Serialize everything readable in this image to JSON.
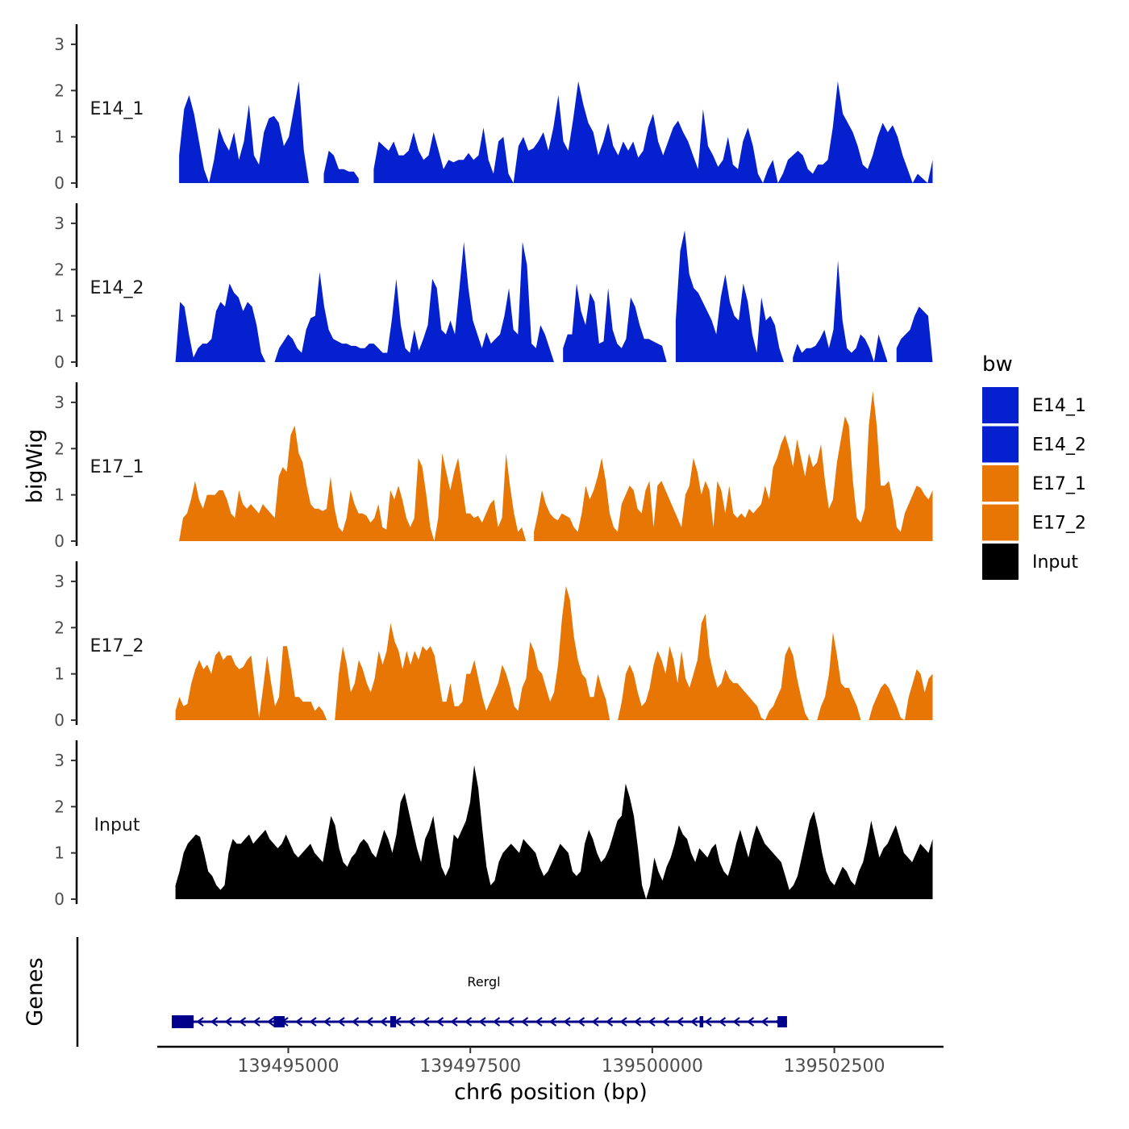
{
  "chart_data": {
    "type": "area",
    "title": "",
    "xlabel": "chr6 position (bp)",
    "ylabel": "bigWig",
    "genes_label": "Genes",
    "legend_title": "bw",
    "legend_position": "right",
    "xlim": [
      139493200,
      139504000
    ],
    "x_ticks": [
      139495000,
      139497500,
      139500000,
      139502500
    ],
    "x_tick_labels": [
      "139495000",
      "139497500",
      "139500000",
      "139502500"
    ],
    "ylim": [
      0,
      3.4
    ],
    "y_ticks": [
      0,
      1,
      2,
      3
    ],
    "y_tick_labels": [
      "0",
      "1",
      "2",
      "3"
    ],
    "series": [
      {
        "name": "E14_1",
        "color": "#0520cf",
        "x_start": 139493500,
        "x_end": 139503850,
        "values": [
          0.6,
          1.6,
          1.9,
          1.5,
          0.9,
          0.3,
          0,
          0.5,
          1.2,
          0.9,
          0.7,
          1.1,
          0.5,
          0.9,
          1.7,
          0.6,
          0.4,
          1.1,
          1.4,
          1.45,
          1.3,
          0.8,
          1.0,
          1.6,
          2.2,
          0.7,
          0,
          null,
          null,
          0.2,
          0.7,
          0.6,
          0.3,
          0.3,
          0.25,
          0.25,
          0.1,
          null,
          null,
          0.3,
          0.9,
          0.8,
          0.7,
          0.9,
          0.6,
          0.6,
          0.7,
          1.1,
          0.7,
          0.5,
          0.6,
          1.1,
          0.7,
          0.3,
          0.5,
          0.45,
          0.5,
          0.5,
          0.65,
          0.5,
          0.6,
          1.2,
          0.5,
          0.2,
          0.9,
          1.0,
          0.2,
          0,
          0.8,
          1.0,
          0.7,
          0.75,
          0.9,
          1.1,
          0.7,
          1.2,
          1.9,
          0.9,
          0.7,
          1.4,
          2.2,
          1.7,
          1.3,
          1.1,
          0.6,
          0.9,
          1.3,
          0.8,
          0.6,
          0.9,
          0.7,
          0.9,
          0.55,
          0.7,
          1.2,
          1.5,
          0.9,
          0.6,
          0.9,
          1.2,
          1.35,
          1.1,
          0.9,
          0.6,
          0.3,
          1.6,
          0.8,
          0.6,
          0.35,
          0.5,
          1.0,
          0.4,
          0.3,
          0.9,
          1.2,
          0.8,
          0.2,
          0,
          0.3,
          0.5,
          0,
          0.2,
          0.5,
          0.6,
          0.7,
          0.6,
          0.3,
          0.2,
          0.4,
          0.4,
          0.5,
          1.2,
          2.2,
          1.5,
          1.3,
          1.1,
          0.8,
          0.4,
          0.3,
          0.6,
          1.0,
          1.3,
          1.1,
          1.25,
          1.0,
          0.6,
          0.3,
          0,
          0.2,
          0.1,
          0,
          0.5
        ]
      },
      {
        "name": "E14_2",
        "color": "#0520cf",
        "x_start": 139493450,
        "x_end": 139503850,
        "values": [
          0,
          1.3,
          1.2,
          0.6,
          0.1,
          0.3,
          0.4,
          0.4,
          0.5,
          1.1,
          1.3,
          1.2,
          1.7,
          1.5,
          1.4,
          1.1,
          1.3,
          1.2,
          0.8,
          0.2,
          0,
          null,
          0,
          0.3,
          0.45,
          0.6,
          0.5,
          0.3,
          0.2,
          0.7,
          0.95,
          1.0,
          1.95,
          1.2,
          0.7,
          0.5,
          0.45,
          0.4,
          0.4,
          0.35,
          0.35,
          0.3,
          0.3,
          0.4,
          0.4,
          0.3,
          0.2,
          0.2,
          0.9,
          1.8,
          0.8,
          0.3,
          0.2,
          0.7,
          0.25,
          0.5,
          0.8,
          1.8,
          1.6,
          0.7,
          0.6,
          0.9,
          0.6,
          1.6,
          2.6,
          1.6,
          0.9,
          0.6,
          0.3,
          0.65,
          0.4,
          0.5,
          0.6,
          1.0,
          1.6,
          0.7,
          0.6,
          2.6,
          2.1,
          0.4,
          0.3,
          0.8,
          0.6,
          0.3,
          0,
          null,
          0.3,
          0.6,
          0.6,
          1.7,
          1.1,
          0.8,
          1.5,
          1.3,
          0.4,
          0.45,
          1.6,
          0.7,
          0.4,
          0.3,
          0.5,
          1.4,
          1.2,
          0.8,
          0.5,
          0.5,
          0.45,
          0.4,
          0.35,
          0,
          null,
          0.9,
          2.4,
          2.85,
          1.9,
          1.6,
          1.5,
          1.3,
          1.1,
          0.9,
          0.6,
          1.4,
          1.9,
          1.3,
          1.0,
          0.9,
          1.7,
          1.3,
          0.6,
          0.2,
          1.4,
          0.9,
          1.0,
          0.8,
          0.3,
          0,
          null,
          0.1,
          0.4,
          0.2,
          0.3,
          0.3,
          0.35,
          0.5,
          0.7,
          0.3,
          0.7,
          2.2,
          0.9,
          0.3,
          0.2,
          0.3,
          0.6,
          0.5,
          0.3,
          0,
          0.6,
          0.3,
          0,
          null,
          0.3,
          0.5,
          0.6,
          0.7,
          1.0,
          1.2,
          1.1,
          1.0,
          0
        ]
      },
      {
        "name": "E17_1",
        "color": "#e77604",
        "x_start": 139493500,
        "x_end": 139503850,
        "values": [
          0,
          0.5,
          0.6,
          0.9,
          1.3,
          0.9,
          0.7,
          1.0,
          1.0,
          1.0,
          1.1,
          1.1,
          0.9,
          0.6,
          0.5,
          1.1,
          0.8,
          0.7,
          0.8,
          0.7,
          0.6,
          0.8,
          0.7,
          0.6,
          0.5,
          1.4,
          1.6,
          1.5,
          2.3,
          2.5,
          1.9,
          1.7,
          1.2,
          0.8,
          0.7,
          0.7,
          0.65,
          0.7,
          1.4,
          0.7,
          0.3,
          0.2,
          0.5,
          1.1,
          0.8,
          0.6,
          0.6,
          0.55,
          0.4,
          0.5,
          0.8,
          0.3,
          0.25,
          1.1,
          0.9,
          1.2,
          0.9,
          0.5,
          0.3,
          0.5,
          1.8,
          1.6,
          1.0,
          0.3,
          0,
          0.5,
          1.9,
          1.5,
          1.1,
          1.5,
          1.8,
          1.2,
          0.6,
          0.6,
          0.5,
          0.55,
          0.4,
          0.6,
          0.8,
          0.9,
          0.3,
          0.5,
          1.9,
          1.2,
          0.6,
          0.2,
          0.3,
          0,
          null,
          0.2,
          0.6,
          1.1,
          0.8,
          0.6,
          0.5,
          0.45,
          0.6,
          0.55,
          0.5,
          0.3,
          0.2,
          0.6,
          1.2,
          0.9,
          1.1,
          1.4,
          1.8,
          1.3,
          0.6,
          0.3,
          0.2,
          0.8,
          1.0,
          1.2,
          1.1,
          0.7,
          0.6,
          1.1,
          1.3,
          0.3,
          1.2,
          1.3,
          1.1,
          0.9,
          0.7,
          0.5,
          0.3,
          1.0,
          1.2,
          1.8,
          1.5,
          1.0,
          1.3,
          1.1,
          0.3,
          1.3,
          1.1,
          0.6,
          1.2,
          0.6,
          0.5,
          0.6,
          0.5,
          0.7,
          0.6,
          0.7,
          0.8,
          1.2,
          0.9,
          1.6,
          1.8,
          2.1,
          2.3,
          2.0,
          1.6,
          2.2,
          1.8,
          1.4,
          1.9,
          1.6,
          1.7,
          2.1,
          1.3,
          0.7,
          0.9,
          1.7,
          2.2,
          2.7,
          2.5,
          1.3,
          0.5,
          0.4,
          0.7,
          2.5,
          3.25,
          2.5,
          1.2,
          1.2,
          1.3,
          0.9,
          0.3,
          0.2,
          0.6,
          0.8,
          1.0,
          1.2,
          1.15,
          1.0,
          0.9,
          1.1
        ]
      },
      {
        "name": "E17_2",
        "color": "#e77604",
        "x_start": 139493450,
        "x_end": 139503850,
        "values": [
          0.2,
          0.5,
          0.3,
          0.35,
          0.8,
          1.1,
          1.3,
          1.1,
          1.2,
          1.0,
          1.4,
          1.5,
          1.3,
          1.4,
          1.4,
          1.2,
          1.1,
          1.15,
          1.3,
          1.4,
          0.7,
          0.05,
          0.7,
          1.4,
          0.8,
          0.3,
          0.5,
          1.6,
          1.6,
          1.1,
          0.5,
          0.5,
          0.4,
          0.4,
          0.4,
          0.2,
          0.3,
          0.2,
          0,
          null,
          0,
          1.0,
          1.6,
          1.2,
          0.6,
          0.8,
          1.3,
          1.1,
          0.8,
          0.6,
          0.9,
          1.5,
          1.2,
          1.5,
          2.1,
          1.7,
          1.5,
          1.1,
          1.5,
          1.2,
          1.5,
          1.3,
          1.6,
          1.5,
          1.6,
          1.4,
          0.9,
          0.4,
          0.4,
          0.8,
          0.3,
          0.3,
          0.4,
          1.0,
          1.0,
          1.3,
          0.9,
          0.5,
          0.2,
          0.4,
          0.6,
          0.8,
          1.2,
          1.0,
          0.7,
          0.3,
          0.2,
          0.7,
          0.9,
          1.7,
          1.5,
          1.1,
          1.0,
          0.7,
          0.4,
          0.6,
          1.2,
          2.2,
          2.9,
          2.6,
          1.8,
          1.3,
          1.0,
          0.9,
          0.5,
          0.5,
          1.0,
          0.7,
          0.45,
          0,
          null,
          0,
          0.4,
          1.0,
          1.2,
          1.0,
          0.6,
          0.3,
          0.4,
          0.7,
          1.2,
          1.5,
          1.3,
          1.0,
          1.6,
          1.3,
          0.8,
          1.5,
          0.9,
          0.7,
          1.0,
          1.3,
          2.1,
          2.3,
          1.4,
          1.0,
          0.7,
          0.8,
          1.1,
          0.9,
          0.8,
          0.8,
          0.7,
          0.6,
          0.5,
          0.4,
          0.3,
          0.05,
          0,
          0.2,
          0.3,
          0.5,
          0.7,
          1.4,
          1.6,
          1.4,
          0.9,
          0.5,
          0.15,
          0,
          null,
          0,
          0.3,
          0.5,
          1.0,
          1.9,
          1.4,
          0.8,
          0.7,
          0.7,
          0.5,
          0.3,
          0,
          null,
          0,
          0.3,
          0.5,
          0.7,
          0.8,
          0.7,
          0.5,
          0.3,
          0.05,
          0,
          0.5,
          0.8,
          1.1,
          1.0,
          0.6,
          0.9,
          1.0
        ]
      },
      {
        "name": "Input",
        "color": "#000000",
        "x_start": 139493450,
        "x_end": 139503850,
        "values": [
          0.3,
          0.6,
          1.0,
          1.2,
          1.3,
          1.4,
          1.35,
          1.0,
          0.6,
          0.5,
          0.3,
          0.2,
          0.3,
          1.0,
          1.3,
          1.2,
          1.2,
          1.3,
          1.4,
          1.2,
          1.3,
          1.4,
          1.5,
          1.3,
          1.2,
          1.1,
          1.2,
          1.4,
          1.2,
          1.0,
          0.9,
          1.0,
          1.1,
          1.2,
          1.0,
          0.9,
          0.8,
          1.3,
          1.8,
          1.6,
          1.1,
          0.8,
          0.7,
          0.9,
          1.0,
          1.2,
          1.3,
          1.2,
          1.0,
          0.9,
          1.2,
          1.5,
          1.3,
          1.0,
          1.4,
          2.1,
          2.3,
          1.9,
          1.5,
          1.1,
          0.8,
          1.3,
          1.5,
          1.8,
          1.2,
          0.7,
          0.5,
          0.7,
          1.4,
          1.3,
          1.5,
          1.7,
          2.1,
          2.9,
          2.4,
          1.5,
          0.7,
          0.3,
          0.4,
          0.8,
          1.0,
          1.1,
          1.2,
          1.1,
          1.0,
          1.3,
          1.2,
          1.1,
          1.0,
          0.7,
          0.5,
          0.6,
          0.8,
          1.0,
          1.2,
          1.1,
          1.0,
          0.6,
          0.5,
          0.6,
          1.2,
          1.5,
          1.3,
          1.0,
          0.8,
          0.9,
          1.1,
          1.4,
          1.7,
          1.8,
          2.5,
          2.2,
          1.8,
          1.1,
          0.3,
          0,
          0.3,
          0.9,
          0.6,
          0.4,
          0.7,
          0.9,
          1.2,
          1.6,
          1.4,
          1.3,
          1.0,
          0.8,
          1.1,
          1.0,
          0.9,
          1.1,
          1.2,
          0.8,
          0.6,
          0.5,
          0.8,
          1.2,
          1.5,
          1.2,
          0.9,
          1.3,
          1.6,
          1.4,
          1.2,
          1.1,
          1.0,
          0.9,
          0.8,
          0.5,
          0.2,
          0.3,
          0.5,
          0.9,
          1.3,
          1.7,
          1.9,
          1.5,
          1.0,
          0.6,
          0.4,
          0.3,
          0.5,
          0.7,
          0.6,
          0.4,
          0.3,
          0.6,
          0.8,
          1.2,
          1.7,
          1.3,
          0.9,
          1.1,
          1.2,
          1.4,
          1.6,
          1.3,
          1.0,
          0.9,
          0.8,
          1.0,
          1.2,
          1.1,
          1.0,
          1.3
        ]
      }
    ],
    "gene_track": {
      "gene": "Rergl",
      "strand": "-",
      "color": "#00008b",
      "start": 139493400,
      "end": 139501850,
      "exons": [
        [
          139493400,
          139493700
        ],
        [
          139494800,
          139494950
        ],
        [
          139496400,
          139496480
        ],
        [
          139500650,
          139500700
        ],
        [
          139501720,
          139501850
        ]
      ]
    }
  }
}
